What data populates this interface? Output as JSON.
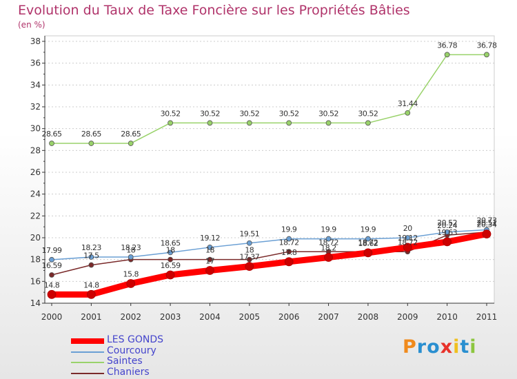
{
  "chart_data": {
    "type": "line",
    "title": "Evolution du Taux de Taxe Foncière sur les Propriétés Bâties",
    "subtitle": "(en %)",
    "xlabel": "",
    "ylabel": "",
    "ylim": [
      14,
      38
    ],
    "yticks": [
      "14",
      "16",
      "18",
      "20",
      "22",
      "24",
      "26",
      "28",
      "30",
      "32",
      "34",
      "36",
      "38"
    ],
    "categories": [
      "2000",
      "2001",
      "2002",
      "2003",
      "2004",
      "2005",
      "2006",
      "2007",
      "2008",
      "2009",
      "2010",
      "2011"
    ],
    "series": [
      {
        "name": "LES GONDS",
        "color": "#ff0000",
        "values": [
          14.8,
          14.8,
          15.8,
          16.59,
          17,
          17.37,
          17.8,
          18.2,
          18.62,
          19.12,
          19.63,
          20.34
        ],
        "labels": [
          "14.8",
          "14.8",
          "15.8",
          "16.59",
          "17",
          "17.37",
          "17.8",
          "18.2",
          "18.62",
          "19.12",
          "19.63",
          "20.34"
        ]
      },
      {
        "name": "Courcoury",
        "color": "#6a9fd4",
        "values": [
          17.99,
          18.23,
          18.23,
          18.65,
          19.12,
          19.51,
          19.9,
          19.9,
          19.9,
          20,
          20.52,
          20.73
        ],
        "labels": [
          "17.99",
          "18.23",
          "18.23",
          "18.65",
          "19.12",
          "19.51",
          "19.9",
          "19.9",
          "19.9",
          "20",
          "20.52",
          "20.73"
        ]
      },
      {
        "name": "Saintes",
        "color": "#99d26a",
        "values": [
          28.65,
          28.65,
          28.65,
          30.52,
          30.52,
          30.52,
          30.52,
          30.52,
          30.52,
          31.44,
          36.78,
          36.78
        ],
        "labels": [
          "28.65",
          "28.65",
          "28.65",
          "30.52",
          "30.52",
          "30.52",
          "30.52",
          "30.52",
          "30.52",
          "31.44",
          "36.78",
          "36.78"
        ]
      },
      {
        "name": "Chaniers",
        "color": "#7a2a2a",
        "values": [
          16.59,
          17.5,
          18,
          18,
          18,
          18,
          18.72,
          18.72,
          18.72,
          18.72,
          20.24,
          20.51
        ],
        "labels": [
          "16.59",
          "17.5",
          "18",
          "18",
          "18",
          "18",
          "18.72",
          "18.72",
          "18.72",
          "18.72",
          "20.24",
          "20.51"
        ]
      }
    ]
  },
  "logo": {
    "text": "Proxiti",
    "letters": [
      "P",
      "r",
      "o",
      "x",
      "i",
      "t",
      "i"
    ],
    "colors": [
      "#f08a1c",
      "#2a8fd0",
      "#2a8fd0",
      "#e8322a",
      "#f0c020",
      "#2a8fd0",
      "#8cc63f"
    ]
  }
}
